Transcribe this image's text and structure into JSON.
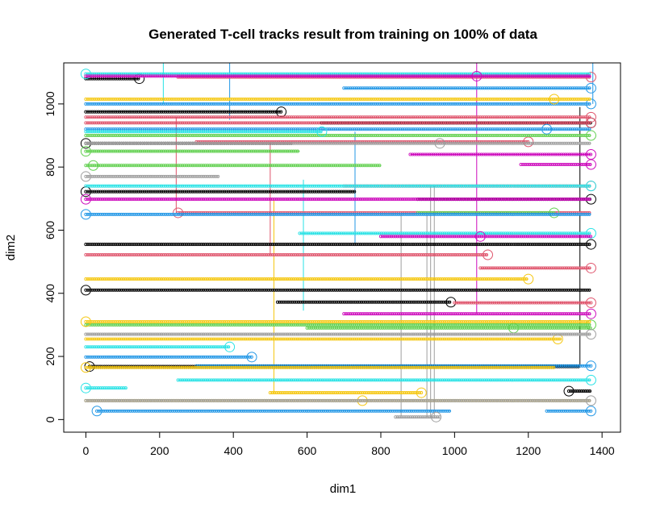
{
  "chart_data": {
    "type": "scatter",
    "title": "Generated T-cell tracks result from training on 100% of data",
    "xlabel": "dim1",
    "ylabel": "dim2",
    "xlim": [
      -60,
      1450
    ],
    "ylim": [
      -40,
      1130
    ],
    "xticks": [
      "0",
      "200",
      "400",
      "600",
      "800",
      "1000",
      "1200",
      "1400"
    ],
    "yticks": [
      "0",
      "200",
      "400",
      "600",
      "800",
      "1000"
    ],
    "grid": false,
    "legend": "none",
    "colors": {
      "black": "#000000",
      "red": "#DF536B",
      "green": "#61D04F",
      "blue": "#2297E6",
      "cyan": "#28E2E5",
      "magenta": "#CD0BBC",
      "yellow": "#F5C710",
      "gray": "#9E9E9E"
    },
    "series": [
      {
        "color": "black",
        "tracks": [
          {
            "x0": 0,
            "x1": 145,
            "y": 1080,
            "end": 145
          },
          {
            "x0": 0,
            "x1": 530,
            "y": 975,
            "end": 530
          },
          {
            "x0": 640,
            "x1": 1370,
            "y": 940,
            "end": 1370
          },
          {
            "x0": 0,
            "x1": 560,
            "y": 875,
            "end": 0
          },
          {
            "x0": 0,
            "x1": 730,
            "y": 722,
            "end": 0
          },
          {
            "x0": 900,
            "x1": 1370,
            "y": 698,
            "end": 1370
          },
          {
            "x0": 0,
            "x1": 1370,
            "y": 555,
            "end": 1370
          },
          {
            "x0": 0,
            "x1": 1370,
            "y": 410,
            "end": 0
          },
          {
            "x0": 520,
            "x1": 990,
            "y": 372,
            "end": 990
          },
          {
            "x0": 10,
            "x1": 1340,
            "y": 168,
            "end": 10
          },
          {
            "x0": 1310,
            "x1": 1370,
            "y": 90,
            "end": 1310
          }
        ]
      },
      {
        "color": "red",
        "tracks": [
          {
            "x0": 250,
            "x1": 1370,
            "y": 1085,
            "end": 1370
          },
          {
            "x0": 0,
            "x1": 1370,
            "y": 958,
            "end": 1370
          },
          {
            "x0": 0,
            "x1": 1370,
            "y": 940,
            "end": 1370
          },
          {
            "x0": 300,
            "x1": 1200,
            "y": 880,
            "end": 1200
          },
          {
            "x0": 700,
            "x1": 1370,
            "y": 740,
            "end": 1370
          },
          {
            "x0": 250,
            "x1": 1370,
            "y": 655,
            "end": 250
          },
          {
            "x0": 0,
            "x1": 1090,
            "y": 522,
            "end": 1090
          },
          {
            "x0": 1070,
            "x1": 1370,
            "y": 480,
            "end": 1370
          },
          {
            "x0": 1000,
            "x1": 1370,
            "y": 370,
            "end": 1370
          }
        ]
      },
      {
        "color": "green",
        "tracks": [
          {
            "x0": 0,
            "x1": 1370,
            "y": 900,
            "end": 1370
          },
          {
            "x0": 0,
            "x1": 580,
            "y": 850,
            "end": 0
          },
          {
            "x0": 0,
            "x1": 800,
            "y": 805,
            "end": 20
          },
          {
            "x0": 900,
            "x1": 1270,
            "y": 655,
            "end": 1270
          },
          {
            "x0": 0,
            "x1": 1370,
            "y": 300,
            "end": 1370
          },
          {
            "x0": 600,
            "x1": 1370,
            "y": 290,
            "end": 1160
          }
        ]
      },
      {
        "color": "blue",
        "tracks": [
          {
            "x0": 0,
            "x1": 1370,
            "y": 1000,
            "end": 1370
          },
          {
            "x0": 700,
            "x1": 1370,
            "y": 1050,
            "end": 1370
          },
          {
            "x0": 0,
            "x1": 1370,
            "y": 920,
            "end": 1250
          },
          {
            "x0": 0,
            "x1": 1370,
            "y": 650,
            "end": 0
          },
          {
            "x0": 0,
            "x1": 450,
            "y": 198,
            "end": 450
          },
          {
            "x0": 30,
            "x1": 990,
            "y": 27,
            "end": 30
          },
          {
            "x0": 1250,
            "x1": 1370,
            "y": 27,
            "end": 1370
          },
          {
            "x0": 300,
            "x1": 1370,
            "y": 170,
            "end": 1370
          }
        ]
      },
      {
        "color": "cyan",
        "tracks": [
          {
            "x0": 0,
            "x1": 1370,
            "y": 1095,
            "end": 0
          },
          {
            "x0": 0,
            "x1": 640,
            "y": 912,
            "end": 640
          },
          {
            "x0": 0,
            "x1": 1370,
            "y": 740,
            "end": 1370
          },
          {
            "x0": 580,
            "x1": 1370,
            "y": 590,
            "end": 1370
          },
          {
            "x0": 0,
            "x1": 390,
            "y": 230,
            "end": 390
          },
          {
            "x0": 250,
            "x1": 1370,
            "y": 125,
            "end": 1370
          },
          {
            "x0": 0,
            "x1": 110,
            "y": 100,
            "end": 0
          }
        ]
      },
      {
        "color": "magenta",
        "tracks": [
          {
            "x0": 0,
            "x1": 1370,
            "y": 1088,
            "end": 1060
          },
          {
            "x0": 880,
            "x1": 1370,
            "y": 840,
            "end": 1370
          },
          {
            "x0": 1180,
            "x1": 1370,
            "y": 808,
            "end": 1370
          },
          {
            "x0": 0,
            "x1": 1370,
            "y": 698,
            "end": 0
          },
          {
            "x0": 800,
            "x1": 1370,
            "y": 580,
            "end": 1070
          },
          {
            "x0": 700,
            "x1": 1370,
            "y": 335,
            "end": 1370
          }
        ]
      },
      {
        "color": "yellow",
        "tracks": [
          {
            "x0": 0,
            "x1": 1370,
            "y": 1015,
            "end": 1270
          },
          {
            "x0": 0,
            "x1": 1200,
            "y": 445,
            "end": 1200
          },
          {
            "x0": 0,
            "x1": 1370,
            "y": 310,
            "end": 0
          },
          {
            "x0": 0,
            "x1": 1290,
            "y": 255,
            "end": 1280
          },
          {
            "x0": 0,
            "x1": 1270,
            "y": 165,
            "end": 0
          },
          {
            "x0": 500,
            "x1": 910,
            "y": 85,
            "end": 910
          },
          {
            "x0": 0,
            "x1": 1370,
            "y": 60,
            "end": 750
          }
        ]
      },
      {
        "color": "gray",
        "tracks": [
          {
            "x0": 0,
            "x1": 1370,
            "y": 875,
            "end": 960
          },
          {
            "x0": 0,
            "x1": 360,
            "y": 770,
            "end": 0
          },
          {
            "x0": 0,
            "x1": 1370,
            "y": 270,
            "end": 1370
          },
          {
            "x0": 0,
            "x1": 1370,
            "y": 60,
            "end": 1370
          },
          {
            "x0": 840,
            "x1": 960,
            "y": 8,
            "end": 950
          }
        ]
      }
    ],
    "connectors": [
      {
        "color": "cyan",
        "x": 210,
        "y0": 1000,
        "y1": 1130
      },
      {
        "color": "blue",
        "x": 390,
        "y0": 950,
        "y1": 1130
      },
      {
        "color": "red",
        "x": 245,
        "y0": 655,
        "y1": 958
      },
      {
        "color": "red",
        "x": 500,
        "y0": 522,
        "y1": 880
      },
      {
        "color": "yellow",
        "x": 510,
        "y0": 85,
        "y1": 700
      },
      {
        "color": "cyan",
        "x": 590,
        "y0": 345,
        "y1": 760
      },
      {
        "color": "blue",
        "x": 730,
        "y0": 555,
        "y1": 912
      },
      {
        "color": "gray",
        "x": 855,
        "y0": 8,
        "y1": 650
      },
      {
        "color": "gray",
        "x": 925,
        "y0": 8,
        "y1": 650
      },
      {
        "color": "gray",
        "x": 935,
        "y0": 8,
        "y1": 740
      },
      {
        "color": "gray",
        "x": 945,
        "y0": 8,
        "y1": 740
      },
      {
        "color": "magenta",
        "x": 1060,
        "y0": 335,
        "y1": 1130
      },
      {
        "color": "blue",
        "x": 1375,
        "y0": 1000,
        "y1": 1130
      },
      {
        "color": "black",
        "x": 1340,
        "y0": 168,
        "y1": 990
      }
    ]
  }
}
